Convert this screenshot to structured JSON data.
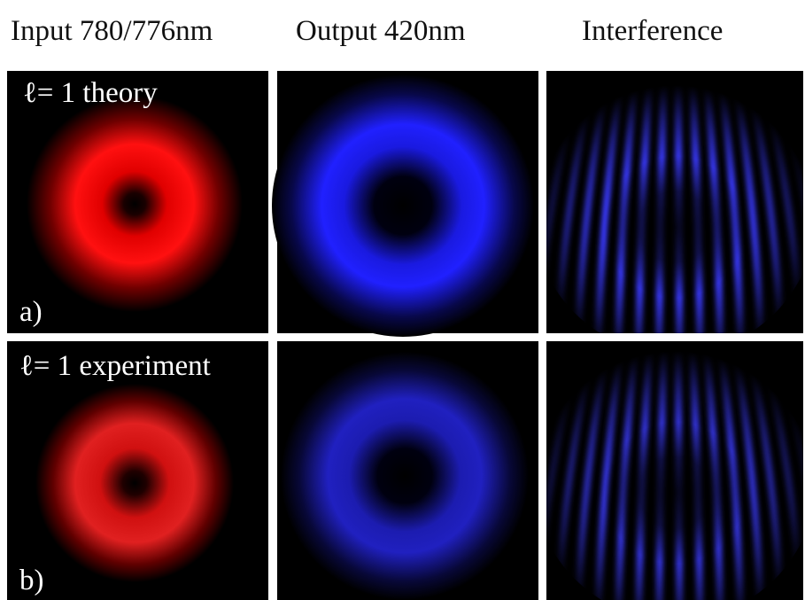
{
  "headers": [
    "Input 780/776nm",
    "Output 420nm",
    "Interference"
  ],
  "panels": [
    {
      "label": "ℓ= 1 theory",
      "tag": "a)"
    },
    {
      "label": "ℓ= 1 experiment",
      "tag": "b)"
    }
  ]
}
